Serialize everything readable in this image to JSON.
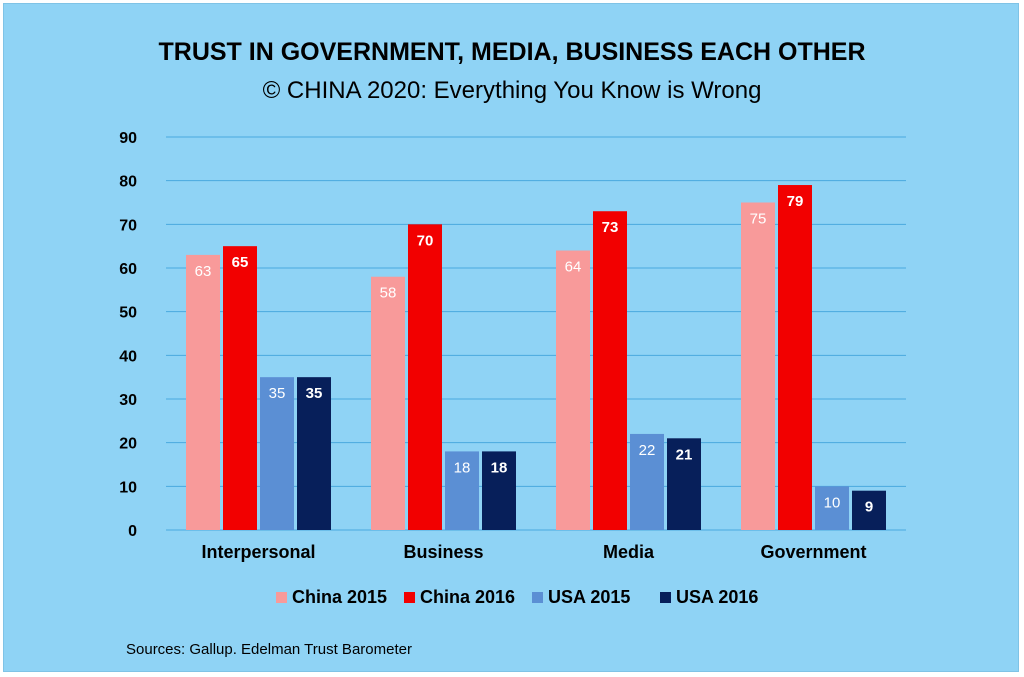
{
  "chart_data": {
    "type": "bar",
    "title": "TRUST IN GOVERNMENT, MEDIA, BUSINESS EACH OTHER",
    "subtitle": "© CHINA 2020: Everything You Know is Wrong",
    "source": "Sources: Gallup. Edelman Trust Barometer",
    "categories": [
      "Interpersonal",
      "Business",
      "Media",
      "Government"
    ],
    "series": [
      {
        "name": "China 2015",
        "color": "#f89a9a",
        "label_bold": false,
        "values": [
          63,
          58,
          64,
          75
        ]
      },
      {
        "name": "China 2016",
        "color": "#f20000",
        "label_bold": true,
        "values": [
          65,
          70,
          73,
          79
        ]
      },
      {
        "name": "USA 2015",
        "color": "#5b8fd4",
        "label_bold": false,
        "values": [
          35,
          18,
          22,
          10
        ]
      },
      {
        "name": "USA 2016",
        "color": "#071f5a",
        "label_bold": true,
        "values": [
          35,
          18,
          21,
          9
        ]
      }
    ],
    "ylim": [
      0,
      90
    ],
    "yticks": [
      0,
      10,
      20,
      30,
      40,
      50,
      60,
      70,
      80,
      90
    ],
    "grid": true,
    "gridline_color": "#4aa8de",
    "legend_position": "bottom",
    "xlabel": "",
    "ylabel": ""
  }
}
